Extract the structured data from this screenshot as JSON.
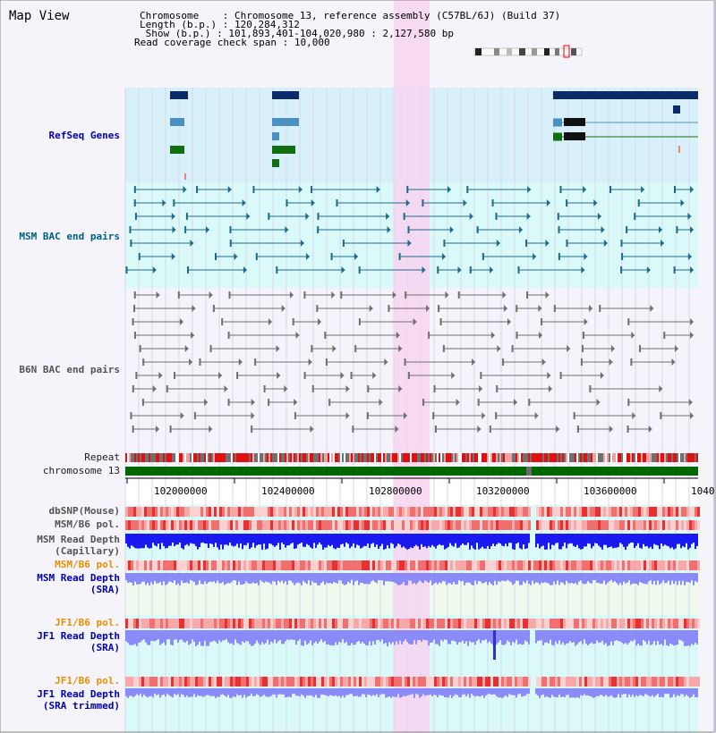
{
  "title": "Map View",
  "header": {
    "chromosome_key": "Chromosome    ",
    "chromosome_val": "Chromosome 13, reference assembly (C57BL/6J) (Build 37)",
    "length_key": "Length (b.p.)",
    "length_val": "120,284,312",
    "show_key": " Show (b.p.)",
    "show_val": "101,893,401-104,020,980 : 2,127,580 bp",
    "span_key": "Read coverage check span",
    "span_val": "10,000"
  },
  "tracks": {
    "refseq": "RefSeq Genes",
    "msm_bac": "MSM BAC end pairs",
    "b6n_bac": "B6N BAC end pairs",
    "repeat": "Repeat",
    "chrom": "chromosome 13",
    "dbsnp": "dbSNP(Mouse)",
    "msm_b6_pol": "MSM/B6 pol.",
    "msm_depth_cap_1": "MSM Read Depth",
    "msm_depth_cap_2": "(Capillary)",
    "msm_b6_pol_2": "MSM/B6 pol.",
    "msm_depth_sra_1": "MSM Read Depth",
    "msm_depth_sra_2": "(SRA)",
    "jf1_b6_pol": "JF1/B6 pol.",
    "jf1_depth_sra_1": "JF1 Read Depth",
    "jf1_depth_sra_2": "(SRA)",
    "jf1_b6_pol_2": "JF1/B6 pol.",
    "jf1_depth_trim_1": "JF1 Read Depth",
    "jf1_depth_trim_2": "(SRA trimmed)"
  },
  "axis": {
    "ticks": [
      "102000000",
      "102400000",
      "102800000",
      "103200000",
      "103600000",
      "1040"
    ]
  },
  "colors": {
    "highlight": "#f7d4f0",
    "refseq_bg": "#d8f0fa",
    "msm_bg": "#dafafa",
    "gene_navy": "#0a2a6a",
    "gene_blue": "#4a90c0",
    "gene_green": "#107010",
    "msm_line": "#206a8a",
    "b6n_line": "#707070",
    "chrom_green": "#006600",
    "depth_blue": "#1a1af0",
    "depth_light": "#8a8af8"
  }
}
